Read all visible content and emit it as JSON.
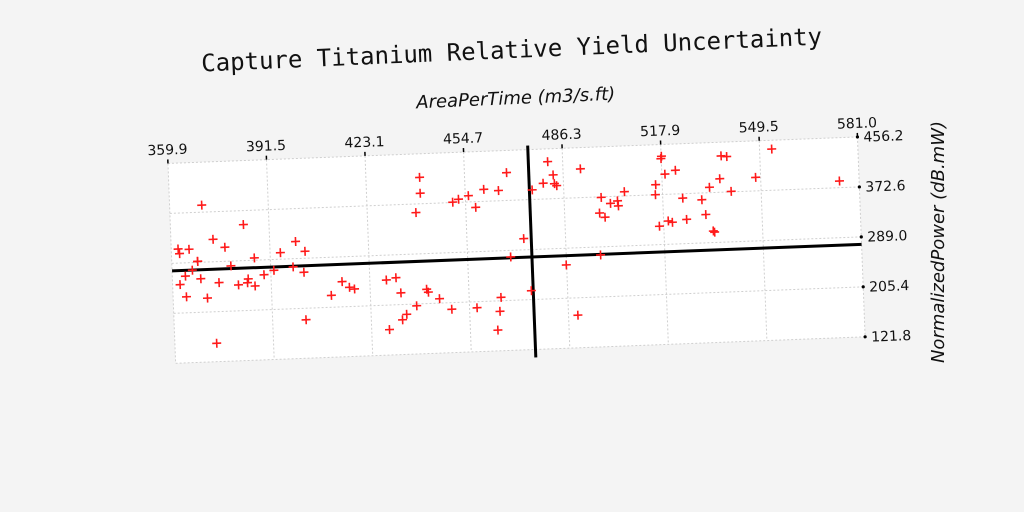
{
  "chart_data": {
    "type": "scatter",
    "title": "Capture Titanium Relative Yield Uncertainty",
    "xlabel": "AreaPerTime (m3/s.ft)",
    "ylabel": "NormalizedPower (dB.mW)",
    "x_axis_position": "top",
    "y_axis_position": "right",
    "xlim": [
      359.9,
      581.0
    ],
    "ylim": [
      121.8,
      456.2
    ],
    "x_ticks": [
      "359.9",
      "391.5",
      "423.1",
      "454.7",
      "486.3",
      "517.9",
      "549.5",
      "581.0"
    ],
    "y_ticks": [
      "456.2",
      "372.6",
      "289.0",
      "205.4",
      "121.8"
    ],
    "grid": true,
    "marker": "+",
    "marker_color": "#ff1a1a",
    "reference_lines": {
      "vertical_x": 475.3,
      "horizontal_y": 276.5
    },
    "series": [
      {
        "points": [
          [
            370.2,
            384.4
          ],
          [
            373.4,
            326.5
          ],
          [
            370.9,
            228.7
          ],
          [
            369.0,
            261.4
          ],
          [
            368.2,
            290.7
          ],
          [
            377.1,
            312.5
          ],
          [
            378.8,
            281.0
          ],
          [
            383.3,
            349.2
          ],
          [
            386.4,
            292.8
          ],
          [
            389.3,
            264.1
          ],
          [
            394.8,
            299.9
          ],
          [
            392.5,
            270.8
          ],
          [
            399.8,
            317.6
          ],
          [
            398.7,
            275.3
          ],
          [
            402.1,
            265.7
          ],
          [
            402.7,
            300.6
          ],
          [
            366.4,
            276.3
          ],
          [
            368.2,
            290.7
          ],
          [
            362.5,
            304.8
          ],
          [
            364.1,
            266.8
          ],
          [
            365.6,
            311.4
          ],
          [
            362.1,
            312.6
          ],
          [
            362.3,
            253.0
          ],
          [
            384.2,
            258.1
          ],
          [
            383.9,
            251.8
          ],
          [
            386.3,
            245.9
          ],
          [
            381.0,
            248.8
          ],
          [
            374.8,
            253.8
          ],
          [
            364.2,
            232.2
          ],
          [
            373.3,
            152.7
          ],
          [
            402.2,
            186.2
          ],
          [
            410.6,
            225.3
          ],
          [
            416.5,
            237.6
          ],
          [
            418.1,
            234.5
          ],
          [
            414.2,
            247.6
          ],
          [
            431.5,
            250.6
          ],
          [
            438.7,
            358.2
          ],
          [
            440.3,
            390.2
          ],
          [
            440.3,
            416.8
          ],
          [
            450.6,
            373.2
          ],
          [
            452.5,
            377.7
          ],
          [
            455.7,
            383.0
          ],
          [
            457.9,
            363.1
          ],
          [
            465.4,
            389.7
          ],
          [
            468.2,
            419.1
          ],
          [
            460.7,
            392.6
          ],
          [
            468.5,
            278.0
          ],
          [
            472.9,
            307.8
          ],
          [
            476.2,
            388.6
          ],
          [
            481.5,
            434.8
          ],
          [
            479.8,
            399.0
          ],
          [
            483.4,
            397.7
          ],
          [
            484.1,
            394.1
          ],
          [
            483.1,
            412.3
          ],
          [
            491.9,
            420.7
          ],
          [
            505.7,
            379.7
          ],
          [
            503.4,
            364.8
          ],
          [
            501.1,
            361.1
          ],
          [
            499.2,
            338.3
          ],
          [
            497.5,
            345.6
          ],
          [
            497.3,
            275.6
          ],
          [
            486.2,
            261.1
          ],
          [
            489.3,
            176.4
          ],
          [
            474.7,
            220.3
          ],
          [
            464.9,
            211.0
          ],
          [
            464.4,
            187.8
          ],
          [
            463.5,
            156.6
          ],
          [
            457.1,
            195.2
          ],
          [
            449.0,
            194.4
          ],
          [
            445.2,
            212.8
          ],
          [
            441.7,
            224.4
          ],
          [
            441.2,
            229.4
          ],
          [
            437.8,
            202.4
          ],
          [
            434.5,
            188.8
          ],
          [
            433.1,
            179.9
          ],
          [
            432.9,
            225.0
          ],
          [
            428.4,
            247.4
          ],
          [
            428.8,
            164.4
          ],
          [
            515.6,
            372.7
          ],
          [
            517.8,
            432.6
          ],
          [
            518.0,
            436.6
          ],
          [
            522.3,
            412.2
          ],
          [
            524.3,
            365.2
          ],
          [
            525.3,
            329.4
          ],
          [
            520.7,
            325.5
          ],
          [
            519.4,
            328.0
          ],
          [
            515.8,
            389.4
          ],
          [
            518.9,
            406.4
          ],
          [
            516.5,
            319.8
          ],
          [
            531.5,
            336.3
          ],
          [
            533.0,
            381.6
          ],
          [
            530.4,
            361.3
          ],
          [
            537.1,
            433.3
          ],
          [
            538.9,
            431.8
          ],
          [
            536.4,
            395.2
          ],
          [
            533.7,
            308.4
          ],
          [
            547.9,
            395.2
          ],
          [
            553.4,
            441.5
          ],
          [
            574.7,
            383.8
          ],
          [
            534.1,
            306.3
          ],
          [
            539.9,
            373.4
          ],
          [
            503.6,
            356.4
          ],
          [
            498.2,
            371.6
          ]
        ]
      }
    ]
  }
}
